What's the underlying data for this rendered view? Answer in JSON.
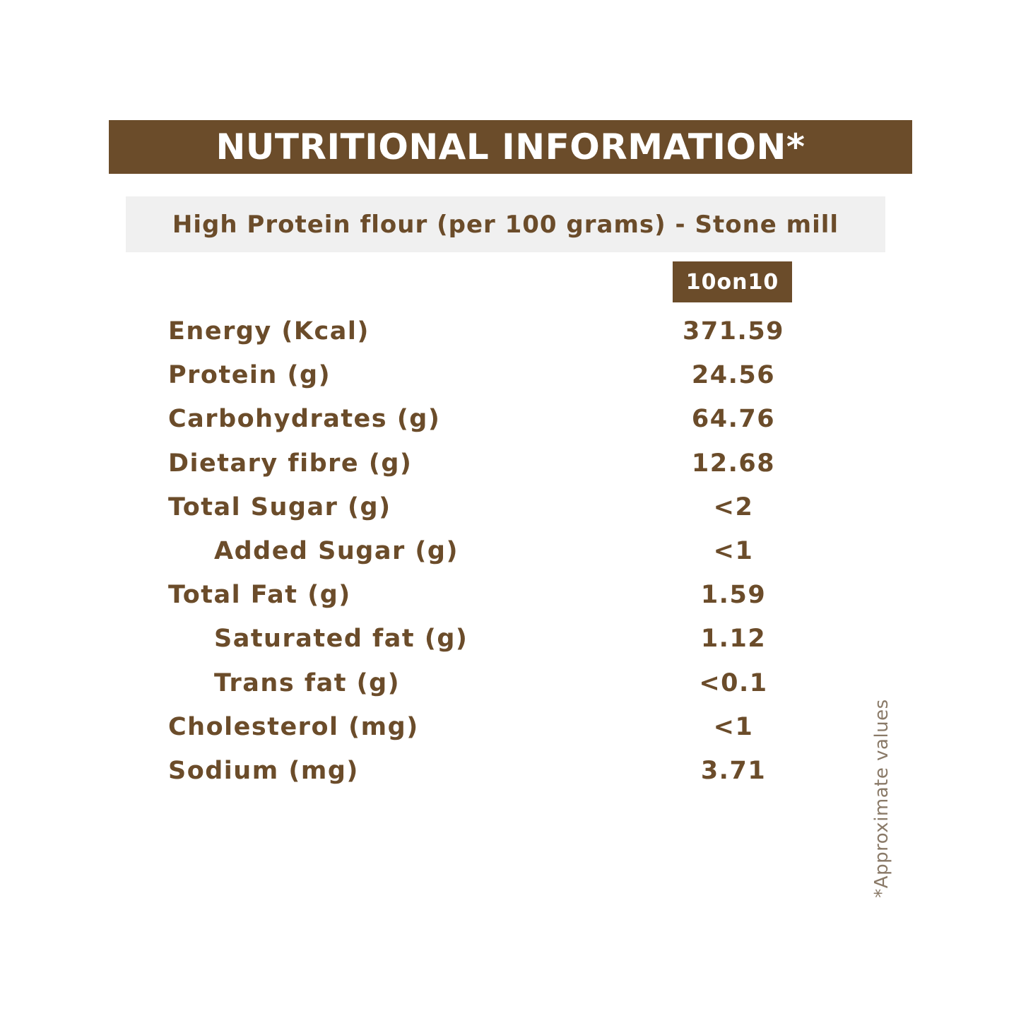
{
  "title": "NUTRITIONAL INFORMATION*",
  "subtitle": "High Protein flour (per 100 grams) - Stone mill",
  "brand_column": "10on10",
  "rows": [
    {
      "label": "Energy (Kcal)",
      "value": "371.59",
      "indent": false
    },
    {
      "label": "Protein (g)",
      "value": "24.56",
      "indent": false
    },
    {
      "label": "Carbohydrates (g)",
      "value": "64.76",
      "indent": false
    },
    {
      "label": "Dietary fibre (g)",
      "value": "12.68",
      "indent": false
    },
    {
      "label": "Total Sugar (g)",
      "value": "<2",
      "indent": false
    },
    {
      "label": "Added Sugar (g)",
      "value": "<1",
      "indent": true
    },
    {
      "label": "Total Fat (g)",
      "value": "1.59",
      "indent": false
    },
    {
      "label": "Saturated fat (g)",
      "value": "1.12",
      "indent": true
    },
    {
      "label": "Trans fat (g)",
      "value": "<0.1",
      "indent": true
    },
    {
      "label": "Cholesterol (mg)",
      "value": "<1",
      "indent": false
    },
    {
      "label": "Sodium (mg)",
      "value": "3.71",
      "indent": false
    }
  ],
  "footnote": "*Approximate values",
  "colors": {
    "brown": "#6b4c2a",
    "subtitle_bg": "#f0f0f0",
    "footnote": "#8a7a68"
  }
}
